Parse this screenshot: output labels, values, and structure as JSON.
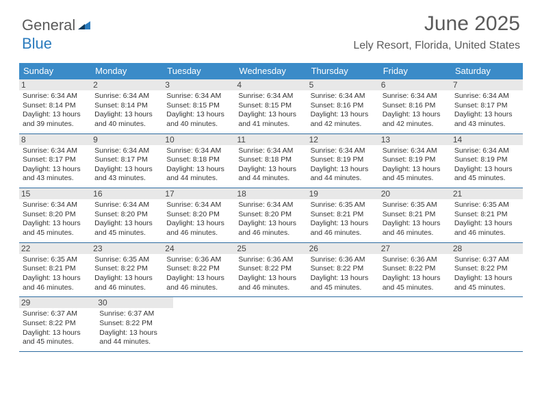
{
  "logo": {
    "text1": "General",
    "text2": "Blue"
  },
  "title": "June 2025",
  "location": "Lely Resort, Florida, United States",
  "colors": {
    "header_bg": "#3b8bc8",
    "header_text": "#ffffff",
    "row_border": "#2b6aa0",
    "daynum_bg": "#e8e8e8",
    "text": "#333333",
    "title_color": "#5a5a5a",
    "logo_gray": "#5a5a5a",
    "logo_blue": "#2b7bbd"
  },
  "typography": {
    "title_fontsize": 30,
    "location_fontsize": 16,
    "dayheader_fontsize": 13,
    "daynum_fontsize": 12,
    "daytext_fontsize": 10.5
  },
  "day_headers": [
    "Sunday",
    "Monday",
    "Tuesday",
    "Wednesday",
    "Thursday",
    "Friday",
    "Saturday"
  ],
  "weeks": [
    [
      {
        "n": "1",
        "sr": "6:34 AM",
        "ss": "8:14 PM",
        "dl": "13 hours and 39 minutes."
      },
      {
        "n": "2",
        "sr": "6:34 AM",
        "ss": "8:14 PM",
        "dl": "13 hours and 40 minutes."
      },
      {
        "n": "3",
        "sr": "6:34 AM",
        "ss": "8:15 PM",
        "dl": "13 hours and 40 minutes."
      },
      {
        "n": "4",
        "sr": "6:34 AM",
        "ss": "8:15 PM",
        "dl": "13 hours and 41 minutes."
      },
      {
        "n": "5",
        "sr": "6:34 AM",
        "ss": "8:16 PM",
        "dl": "13 hours and 42 minutes."
      },
      {
        "n": "6",
        "sr": "6:34 AM",
        "ss": "8:16 PM",
        "dl": "13 hours and 42 minutes."
      },
      {
        "n": "7",
        "sr": "6:34 AM",
        "ss": "8:17 PM",
        "dl": "13 hours and 43 minutes."
      }
    ],
    [
      {
        "n": "8",
        "sr": "6:34 AM",
        "ss": "8:17 PM",
        "dl": "13 hours and 43 minutes."
      },
      {
        "n": "9",
        "sr": "6:34 AM",
        "ss": "8:17 PM",
        "dl": "13 hours and 43 minutes."
      },
      {
        "n": "10",
        "sr": "6:34 AM",
        "ss": "8:18 PM",
        "dl": "13 hours and 44 minutes."
      },
      {
        "n": "11",
        "sr": "6:34 AM",
        "ss": "8:18 PM",
        "dl": "13 hours and 44 minutes."
      },
      {
        "n": "12",
        "sr": "6:34 AM",
        "ss": "8:19 PM",
        "dl": "13 hours and 44 minutes."
      },
      {
        "n": "13",
        "sr": "6:34 AM",
        "ss": "8:19 PM",
        "dl": "13 hours and 45 minutes."
      },
      {
        "n": "14",
        "sr": "6:34 AM",
        "ss": "8:19 PM",
        "dl": "13 hours and 45 minutes."
      }
    ],
    [
      {
        "n": "15",
        "sr": "6:34 AM",
        "ss": "8:20 PM",
        "dl": "13 hours and 45 minutes."
      },
      {
        "n": "16",
        "sr": "6:34 AM",
        "ss": "8:20 PM",
        "dl": "13 hours and 45 minutes."
      },
      {
        "n": "17",
        "sr": "6:34 AM",
        "ss": "8:20 PM",
        "dl": "13 hours and 46 minutes."
      },
      {
        "n": "18",
        "sr": "6:34 AM",
        "ss": "8:20 PM",
        "dl": "13 hours and 46 minutes."
      },
      {
        "n": "19",
        "sr": "6:35 AM",
        "ss": "8:21 PM",
        "dl": "13 hours and 46 minutes."
      },
      {
        "n": "20",
        "sr": "6:35 AM",
        "ss": "8:21 PM",
        "dl": "13 hours and 46 minutes."
      },
      {
        "n": "21",
        "sr": "6:35 AM",
        "ss": "8:21 PM",
        "dl": "13 hours and 46 minutes."
      }
    ],
    [
      {
        "n": "22",
        "sr": "6:35 AM",
        "ss": "8:21 PM",
        "dl": "13 hours and 46 minutes."
      },
      {
        "n": "23",
        "sr": "6:35 AM",
        "ss": "8:22 PM",
        "dl": "13 hours and 46 minutes."
      },
      {
        "n": "24",
        "sr": "6:36 AM",
        "ss": "8:22 PM",
        "dl": "13 hours and 46 minutes."
      },
      {
        "n": "25",
        "sr": "6:36 AM",
        "ss": "8:22 PM",
        "dl": "13 hours and 46 minutes."
      },
      {
        "n": "26",
        "sr": "6:36 AM",
        "ss": "8:22 PM",
        "dl": "13 hours and 45 minutes."
      },
      {
        "n": "27",
        "sr": "6:36 AM",
        "ss": "8:22 PM",
        "dl": "13 hours and 45 minutes."
      },
      {
        "n": "28",
        "sr": "6:37 AM",
        "ss": "8:22 PM",
        "dl": "13 hours and 45 minutes."
      }
    ],
    [
      {
        "n": "29",
        "sr": "6:37 AM",
        "ss": "8:22 PM",
        "dl": "13 hours and 45 minutes."
      },
      {
        "n": "30",
        "sr": "6:37 AM",
        "ss": "8:22 PM",
        "dl": "13 hours and 44 minutes."
      },
      null,
      null,
      null,
      null,
      null
    ]
  ],
  "labels": {
    "sunrise": "Sunrise:",
    "sunset": "Sunset:",
    "daylight": "Daylight:"
  }
}
